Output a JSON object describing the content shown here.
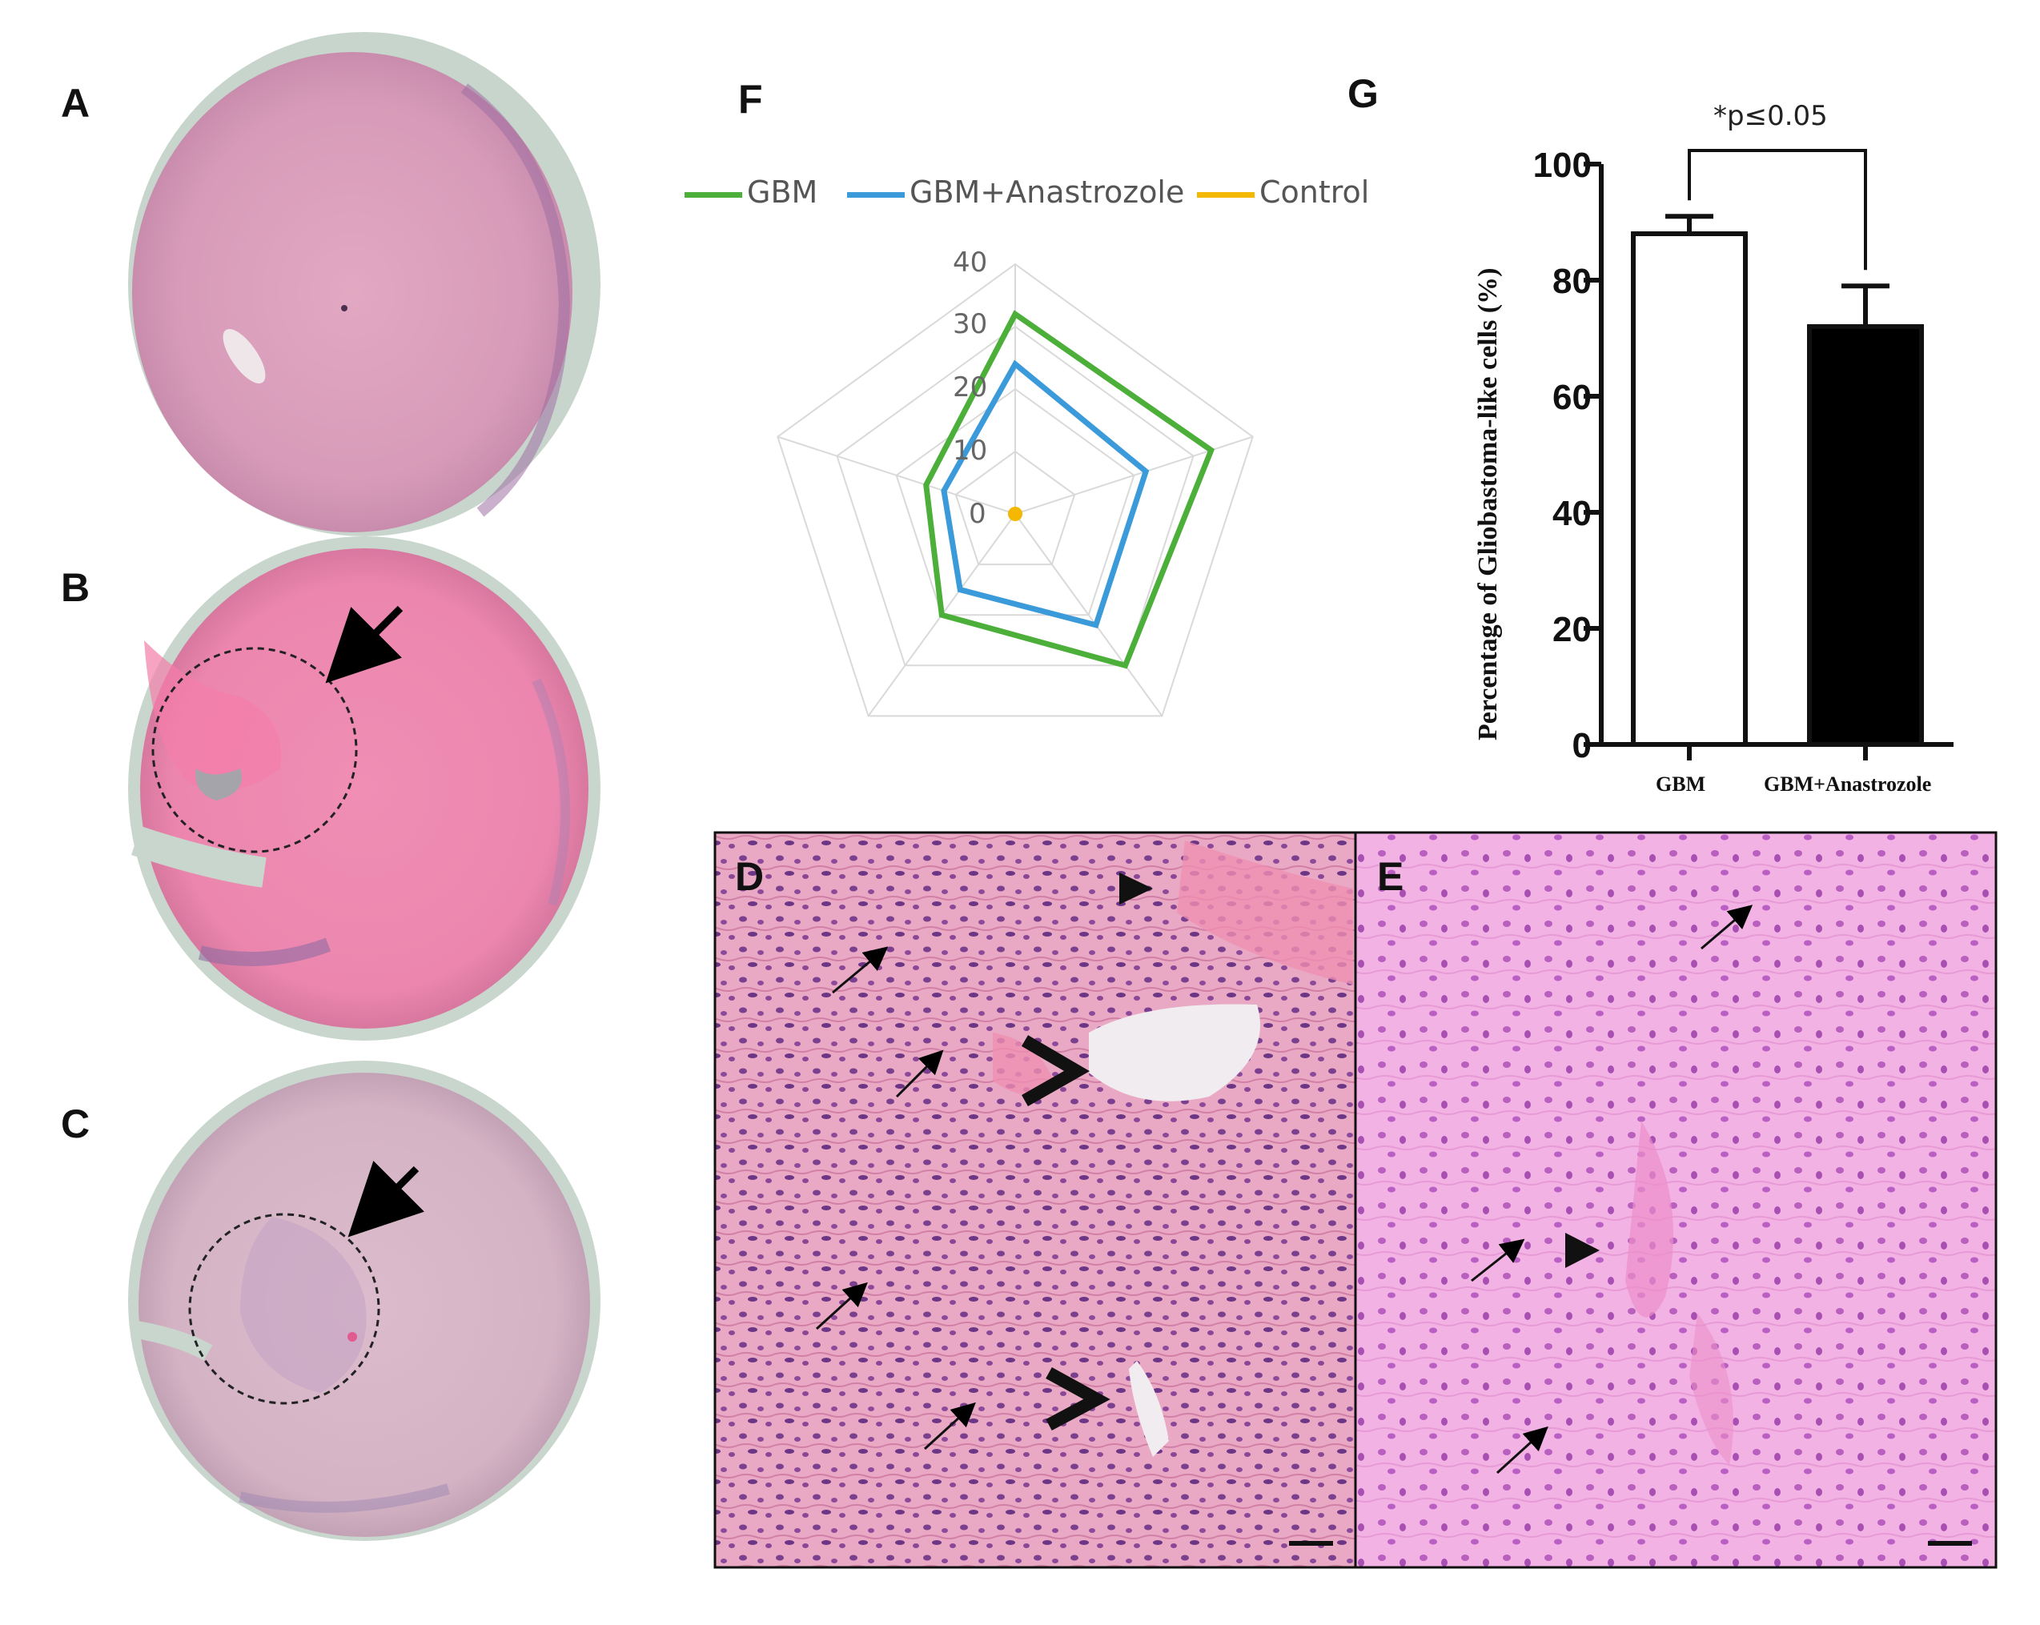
{
  "figure": {
    "panels": [
      "A",
      "B",
      "C",
      "D",
      "E",
      "F",
      "G"
    ]
  },
  "panel_f": {
    "legend": [
      {
        "label": "GBM",
        "color": "#4caf3a"
      },
      {
        "label": "GBM+Anastrozole",
        "color": "#3b9ad9"
      },
      {
        "label": "Control",
        "color": "#f5b800"
      }
    ]
  },
  "panel_g": {
    "significance": "*p≤0.05"
  },
  "chart_data": [
    {
      "type": "radar",
      "axes_count": 5,
      "ticks": [
        "0",
        "10",
        "20",
        "30",
        "40"
      ],
      "range": [
        0,
        40
      ],
      "series": [
        {
          "name": "GBM",
          "values": [
            32,
            33,
            30,
            20,
            15
          ],
          "color": "#4caf3a"
        },
        {
          "name": "GBM+Anastrozole",
          "values": [
            24,
            22,
            22,
            15,
            12
          ],
          "color": "#3b9ad9"
        },
        {
          "name": "Control",
          "values": [
            0,
            0,
            0,
            0,
            0
          ],
          "color": "#f5b800"
        }
      ],
      "grid": true,
      "legend_position": "top"
    },
    {
      "type": "bar",
      "categories": [
        "GBM",
        "GBM+Anastrozole"
      ],
      "values": [
        88,
        72
      ],
      "errors": [
        3,
        7
      ],
      "bar_colors": [
        "#ffffff",
        "#000000"
      ],
      "ylabel": "Percentage of Gliobastoma-like cells (%)",
      "yticks": [
        "0",
        "20",
        "40",
        "60",
        "80",
        "100"
      ],
      "ylim": [
        0,
        100
      ],
      "annotation": "*p≤0.05"
    }
  ]
}
